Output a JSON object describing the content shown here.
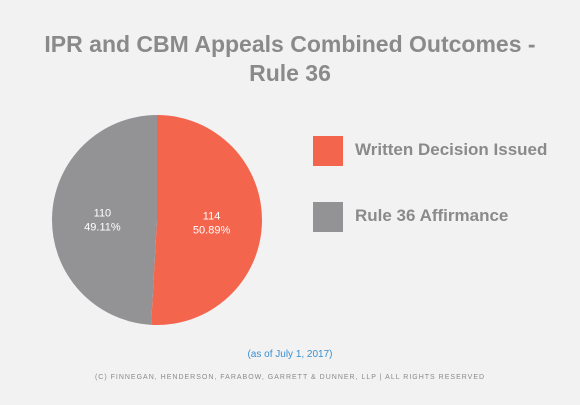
{
  "title_line1": "IPR and CBM Appeals Combined Outcomes -",
  "title_line2": "Rule 36",
  "note": "(as of July 1, 2017)",
  "copyright": "(C) FINNEGAN, HENDERSON, FARABOW, GARRETT & DUNNER, LLP | ALL RIGHTS RESERVED",
  "chart_data": {
    "type": "pie",
    "slices": [
      {
        "label": "Written Decision Issued",
        "value": 114,
        "percent": "50.89%",
        "color": "#f4654d"
      },
      {
        "label": "Rule 36 Affirmance",
        "value": 110,
        "percent": "49.11%",
        "color": "#939396"
      }
    ],
    "title": "IPR and CBM Appeals Combined Outcomes - Rule 36",
    "legend_position": "right"
  }
}
